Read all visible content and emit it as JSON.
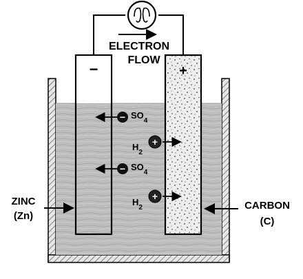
{
  "electron_flow": {
    "line1": "ELECTRON",
    "line2": "FLOW"
  },
  "electrodes": {
    "zinc": {
      "name": "ZINC",
      "symbol": "(Zn)",
      "polarity": "−"
    },
    "carbon": {
      "name": "CARBON",
      "symbol": "(C)",
      "polarity": "+"
    }
  },
  "ions": {
    "sulfate": {
      "sign": "−",
      "base": "SO",
      "sub": "4"
    },
    "hydrogen": {
      "sign": "+",
      "base": "H",
      "sub": "2"
    }
  },
  "colors": {
    "electrolyte": "#bdbdbd",
    "container_wall": "#d9d9d9",
    "ink": "#000000",
    "carbon_fill": "#ececec"
  }
}
